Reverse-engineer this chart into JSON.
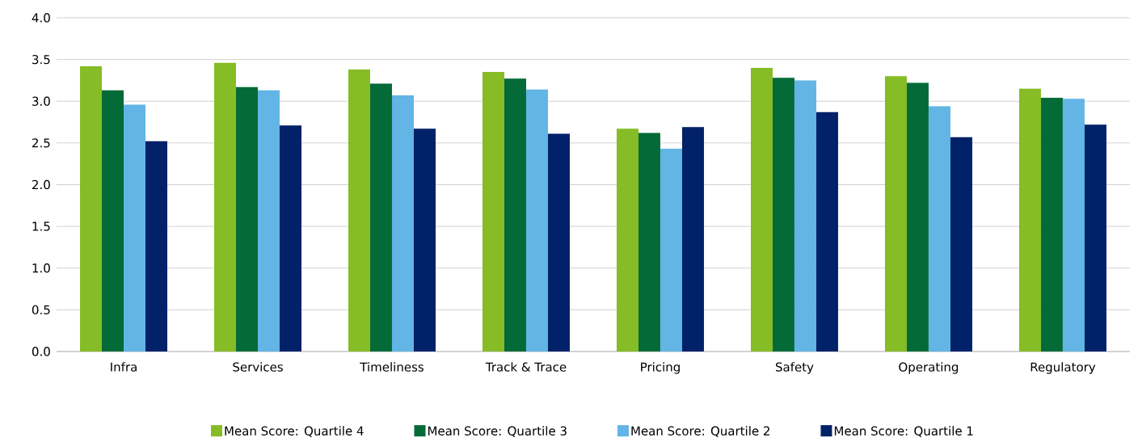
{
  "chart_data": {
    "type": "bar",
    "categories": [
      "Infra",
      "Services",
      "Timeliness",
      "Track & Trace",
      "Pricing",
      "Safety",
      "Operating",
      "Regulatory"
    ],
    "series": [
      {
        "name": "Mean Score: Quartile 4",
        "color": "#86bc25",
        "values": [
          3.42,
          3.46,
          3.38,
          3.35,
          2.67,
          3.4,
          3.3,
          3.15
        ]
      },
      {
        "name": "Mean Score: Quartile 3",
        "color": "#046a38",
        "values": [
          3.13,
          3.17,
          3.21,
          3.27,
          2.62,
          3.28,
          3.22,
          3.04
        ]
      },
      {
        "name": "Mean Score: Quartile 2",
        "color": "#62b5e5",
        "values": [
          2.96,
          3.13,
          3.07,
          3.14,
          2.43,
          3.25,
          2.94,
          3.03
        ]
      },
      {
        "name": "Mean Score: Quartile 1",
        "color": "#012169",
        "values": [
          2.52,
          2.71,
          2.67,
          2.61,
          2.69,
          2.87,
          2.57,
          2.72
        ]
      }
    ],
    "ylim": [
      0,
      4
    ],
    "yticks": [
      {
        "value": 0,
        "label": "0.0"
      },
      {
        "value": 0.5,
        "label": "0.5"
      },
      {
        "value": 1,
        "label": "1.0"
      },
      {
        "value": 1.5,
        "label": "1.5"
      },
      {
        "value": 2,
        "label": "2.0"
      },
      {
        "value": 2.5,
        "label": "2.5"
      },
      {
        "value": 3,
        "label": "3.0"
      },
      {
        "value": 3.5,
        "label": "3.5"
      },
      {
        "value": 4,
        "label": "4.0"
      }
    ],
    "grid": "y",
    "legend": "bottom"
  }
}
